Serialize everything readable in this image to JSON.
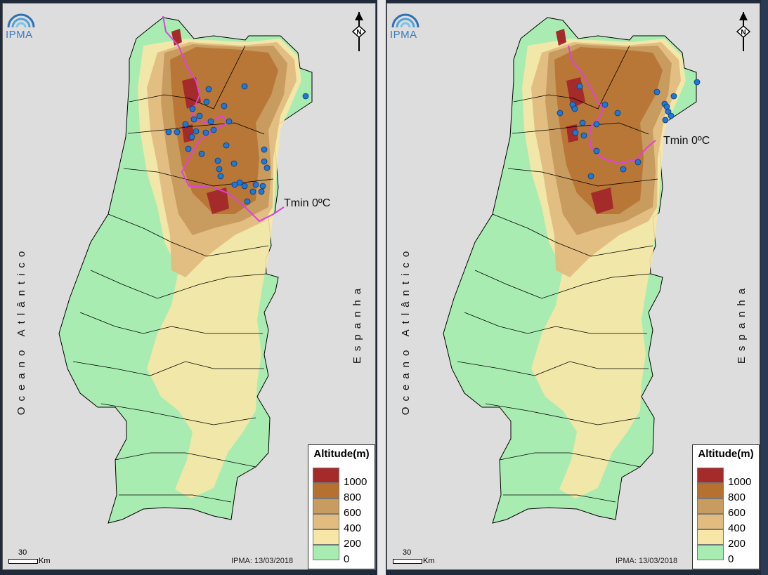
{
  "panels": [
    {
      "id": "left",
      "logo_text": "IPMA",
      "ocean_label": "Oceano Atlântico",
      "spain_label": "Espanha",
      "isoline_label": "Tmin 0ºC",
      "credit": "IPMA: 13/03/2018",
      "scale_value": "30",
      "scale_unit": "Km"
    },
    {
      "id": "right",
      "logo_text": "IPMA",
      "ocean_label": "Oceano Atlântico",
      "spain_label": "Espanha",
      "isoline_label": "Tmin 0ºC",
      "credit": "IPMA: 13/03/2018",
      "scale_value": "30",
      "scale_unit": "Km"
    }
  ],
  "legend": {
    "title": "Altitude(m)",
    "items": [
      {
        "label": "1000",
        "color": "#a52a2a"
      },
      {
        "label": "800",
        "color": "#b5712f"
      },
      {
        "label": "600",
        "color": "#c89b5f"
      },
      {
        "label": "400",
        "color": "#e2bc7f"
      },
      {
        "label": "200",
        "color": "#f7e7a6"
      },
      {
        "label": "0",
        "color": "#a8ecb2"
      }
    ]
  },
  "colors": {
    "background": "#dddddd",
    "isoline": "#e040e0",
    "station_dot": "#1f77d6",
    "logo_blue": "#3a7cc1"
  },
  "icons": [
    "ipma-logo-icon",
    "north-arrow-icon",
    "station-dot-icon"
  ]
}
